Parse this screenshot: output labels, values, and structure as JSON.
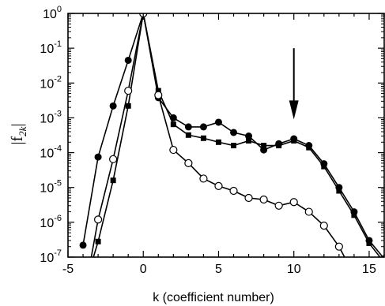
{
  "chart_data": {
    "type": "line",
    "title": "",
    "xlabel": "k (coefficient number)",
    "ylabel": "|f",
    "ylabel_sub": "2k",
    "ylabel_close": "|",
    "xlim": [
      -5,
      16
    ],
    "ylim_log10": [
      -7,
      0
    ],
    "y_scale": "log",
    "x_ticks": [
      -5,
      0,
      5,
      10,
      15
    ],
    "x_tick_labels": [
      "-5",
      "0",
      "5",
      "10",
      "15"
    ],
    "y_ticks_exp": [
      0,
      -1,
      -2,
      -3,
      -4,
      -5,
      -6,
      -7
    ],
    "y_tick_base": "10",
    "y_tick_exps": [
      "0",
      "-1",
      "-2",
      "-3",
      "-4",
      "-5",
      "-6",
      "-7"
    ],
    "grid": false,
    "annotation": {
      "type": "arrow",
      "x": 10,
      "y_from": 0.1,
      "y_to": 0.001
    },
    "series": [
      {
        "marker": "filled-circle",
        "x": [
          -4,
          -3,
          -2,
          -1,
          0,
          1,
          2,
          3,
          4,
          5,
          6,
          7,
          8,
          9,
          10,
          11,
          12,
          13,
          14,
          15,
          16
        ],
        "y": [
          2.2e-07,
          7.5e-05,
          0.0022,
          0.045,
          1.0,
          0.0038,
          0.001,
          0.00055,
          0.00055,
          0.00075,
          0.00038,
          0.0003,
          0.00012,
          0.00018,
          0.00025,
          0.00016,
          4.8e-05,
          1e-05,
          2e-06,
          3e-07,
          9e-08
        ]
      },
      {
        "marker": "filled-square",
        "x": [
          -4,
          -3,
          -2,
          -1,
          0,
          1,
          2,
          3,
          4,
          5,
          6,
          7,
          8,
          9,
          10,
          11,
          12,
          13,
          14,
          15,
          16
        ],
        "y": [
          1e-08,
          2.8e-07,
          1.6e-05,
          0.0022,
          1.0,
          0.006,
          0.00065,
          0.00032,
          0.00026,
          0.0002,
          0.00016,
          0.00022,
          0.00016,
          0.00016,
          0.00022,
          0.00014,
          4e-05,
          8e-06,
          1.6e-06,
          2.5e-07,
          7e-08
        ]
      },
      {
        "marker": "open-circle",
        "x": [
          -4,
          -3,
          -2,
          -1,
          0,
          1,
          2,
          3,
          4,
          5,
          6,
          7,
          8,
          9,
          10,
          11,
          12,
          13,
          14
        ],
        "y": [
          5e-09,
          1.2e-06,
          6.5e-05,
          0.006,
          1.0,
          0.0045,
          0.00012,
          5e-05,
          1.8e-05,
          1.1e-05,
          8e-06,
          5e-06,
          4.5e-06,
          3e-06,
          3.8e-06,
          2e-06,
          8e-07,
          2e-07,
          3e-08
        ]
      }
    ]
  }
}
